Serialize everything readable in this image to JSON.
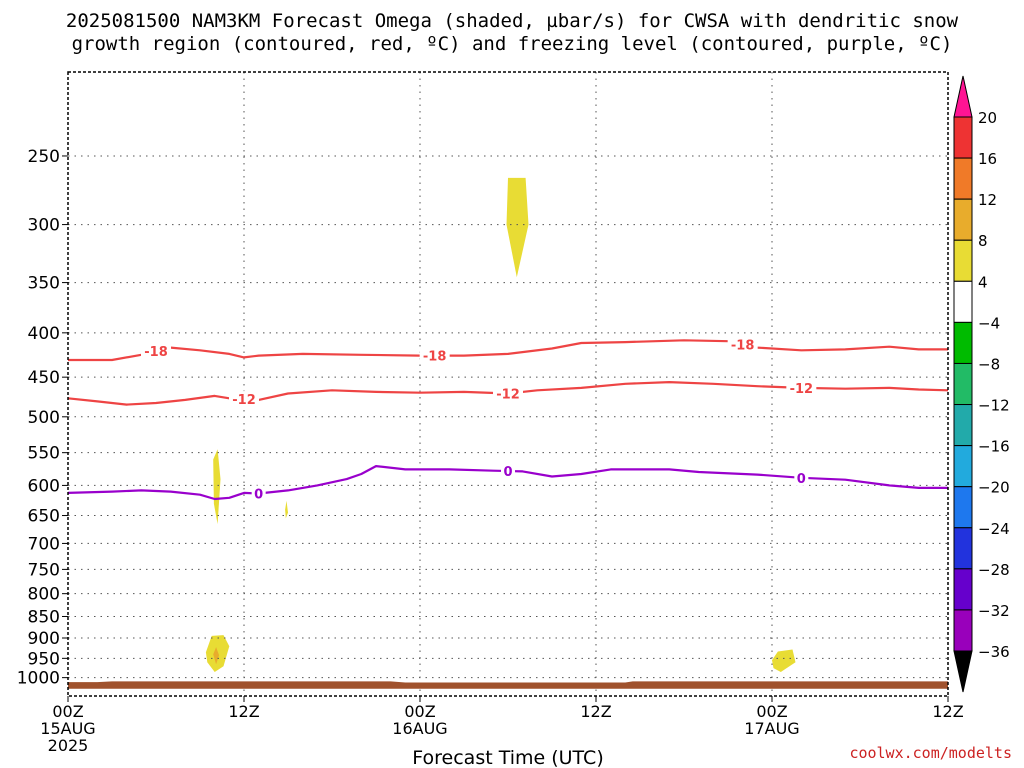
{
  "title": {
    "line1": "2025081500 NAM3KM Forecast Omega (shaded, µbar/s) for CWSA with dendritic snow",
    "line2": "growth region (contoured, red, ºC) and freezing level (contoured, purple, ºC)"
  },
  "credit": "coolwx.com/modelts",
  "colors": {
    "dgz": "#ee4444",
    "freezing": "#9900cc",
    "terrain": "#a0522d",
    "omega4to8": "#e8dc34",
    "omega8to12": "#e8ac2c",
    "grid": "#555555"
  },
  "chart_data": {
    "type": "time-height",
    "xlabel": "Forecast Time (UTC)",
    "x_ticks": [
      {
        "hour": 0,
        "lines": [
          "00Z",
          "15AUG",
          "2025"
        ]
      },
      {
        "hour": 12,
        "lines": [
          "12Z"
        ]
      },
      {
        "hour": 24,
        "lines": [
          "00Z",
          "16AUG"
        ]
      },
      {
        "hour": 36,
        "lines": [
          "12Z"
        ]
      },
      {
        "hour": 48,
        "lines": [
          "00Z",
          "17AUG"
        ]
      },
      {
        "hour": 60,
        "lines": [
          "12Z"
        ]
      }
    ],
    "xlim_hours": [
      0,
      60
    ],
    "y_ticks": [
      250,
      300,
      350,
      400,
      450,
      500,
      550,
      600,
      650,
      700,
      750,
      800,
      850,
      900,
      950,
      1000
    ],
    "ylim_hpa": [
      200,
      1050
    ],
    "grid": true,
    "colorbar": {
      "unit": "µbar/s",
      "labels": [
        20,
        16,
        12,
        8,
        4,
        -4,
        -8,
        -12,
        -16,
        -20,
        -24,
        -28,
        -32,
        -36
      ],
      "colors": [
        "#ff1493",
        "#ee3333",
        "#f07a28",
        "#e8ac2c",
        "#e8dc34",
        "#ffffff",
        "#00bb00",
        "#22bb66",
        "#22aaaa",
        "#22aadd",
        "#1e78ee",
        "#2233dd",
        "#6600cc",
        "#9900bb",
        "#aaaaaa",
        "#000000"
      ]
    },
    "contours": [
      {
        "color_key": "dgz",
        "label": "-18",
        "label_hours": [
          6,
          25,
          46
        ],
        "points": [
          [
            0,
            430
          ],
          [
            3,
            430
          ],
          [
            5,
            424
          ],
          [
            7,
            416
          ],
          [
            9,
            419
          ],
          [
            11,
            423
          ],
          [
            12,
            427
          ],
          [
            13,
            425
          ],
          [
            16,
            423
          ],
          [
            20,
            424
          ],
          [
            24,
            425
          ],
          [
            27,
            425
          ],
          [
            30,
            423
          ],
          [
            33,
            417
          ],
          [
            35,
            411
          ],
          [
            38,
            410
          ],
          [
            42,
            408
          ],
          [
            45,
            409
          ],
          [
            47,
            416
          ],
          [
            50,
            419
          ],
          [
            53,
            418
          ],
          [
            56,
            415
          ],
          [
            58,
            418
          ],
          [
            60,
            418
          ]
        ]
      },
      {
        "color_key": "dgz",
        "label": "-12",
        "label_hours": [
          12,
          30,
          50
        ],
        "points": [
          [
            0,
            476
          ],
          [
            2,
            480
          ],
          [
            4,
            484
          ],
          [
            6,
            482
          ],
          [
            8,
            478
          ],
          [
            10,
            473
          ],
          [
            11,
            476
          ],
          [
            13,
            478
          ],
          [
            15,
            470
          ],
          [
            18,
            466
          ],
          [
            21,
            468
          ],
          [
            24,
            469
          ],
          [
            27,
            468
          ],
          [
            30,
            470
          ],
          [
            32,
            466
          ],
          [
            35,
            463
          ],
          [
            38,
            458
          ],
          [
            41,
            456
          ],
          [
            44,
            458
          ],
          [
            47,
            461
          ],
          [
            50,
            463
          ],
          [
            53,
            464
          ],
          [
            56,
            463
          ],
          [
            58,
            465
          ],
          [
            60,
            466
          ]
        ]
      },
      {
        "color_key": "freezing",
        "label": "0",
        "label_hours": [
          13,
          30,
          50
        ],
        "points": [
          [
            0,
            612
          ],
          [
            3,
            610
          ],
          [
            5,
            608
          ],
          [
            7,
            610
          ],
          [
            9,
            615
          ],
          [
            10,
            622
          ],
          [
            11,
            620
          ],
          [
            12,
            612
          ],
          [
            13,
            613
          ],
          [
            15,
            608
          ],
          [
            17,
            600
          ],
          [
            19,
            590
          ],
          [
            20,
            582
          ],
          [
            21,
            570
          ],
          [
            23,
            575
          ],
          [
            26,
            575
          ],
          [
            29,
            577
          ],
          [
            31,
            578
          ],
          [
            33,
            586
          ],
          [
            35,
            582
          ],
          [
            37,
            575
          ],
          [
            41,
            575
          ],
          [
            43,
            579
          ],
          [
            47,
            583
          ],
          [
            50,
            588
          ],
          [
            53,
            591
          ],
          [
            56,
            600
          ],
          [
            58,
            604
          ],
          [
            60,
            604
          ]
        ]
      }
    ],
    "omega_areas": [
      {
        "color_key": "omega4to8",
        "points": [
          [
            30,
            265
          ],
          [
            31.2,
            265
          ],
          [
            31.4,
            300
          ],
          [
            30.6,
            345
          ],
          [
            29.9,
            300
          ]
        ]
      },
      {
        "color_key": "omega4to8",
        "points": [
          [
            9.9,
            560
          ],
          [
            10.2,
            545
          ],
          [
            10.4,
            590
          ],
          [
            10.2,
            665
          ],
          [
            9.95,
            630
          ]
        ]
      },
      {
        "color_key": "omega4to8",
        "points": [
          [
            14.8,
            640
          ],
          [
            14.9,
            625
          ],
          [
            15.0,
            645
          ],
          [
            14.85,
            655
          ]
        ]
      },
      {
        "color_key": "omega4to8",
        "points": [
          [
            9.4,
            935
          ],
          [
            9.8,
            895
          ],
          [
            10.6,
            893
          ],
          [
            11.0,
            920
          ],
          [
            10.6,
            970
          ],
          [
            10.0,
            985
          ],
          [
            9.5,
            960
          ]
        ]
      },
      {
        "color_key": "omega8to12",
        "points": [
          [
            9.9,
            940
          ],
          [
            10.1,
            922
          ],
          [
            10.3,
            942
          ],
          [
            10.1,
            965
          ]
        ]
      },
      {
        "color_key": "omega4to8",
        "points": [
          [
            48,
            955
          ],
          [
            48.4,
            933
          ],
          [
            49.4,
            928
          ],
          [
            49.6,
            960
          ],
          [
            48.6,
            985
          ],
          [
            48.1,
            975
          ]
        ]
      }
    ],
    "terrain": {
      "top_hpa": [
        [
          0,
          1012
        ],
        [
          2,
          1012
        ],
        [
          3,
          1010
        ],
        [
          22,
          1010
        ],
        [
          23,
          1013
        ],
        [
          38,
          1013
        ],
        [
          38.5,
          1010
        ],
        [
          60,
          1010
        ]
      ],
      "bottom_hpa": 1030
    }
  }
}
